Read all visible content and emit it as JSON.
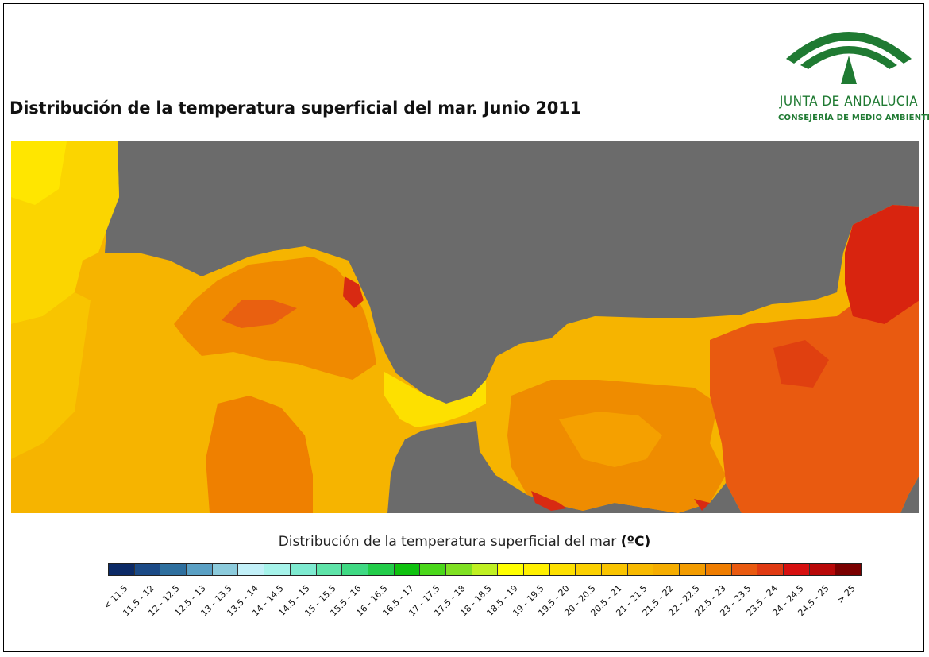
{
  "page": {
    "title": "Distribución de la temperatura superficial del mar. Junio 2011"
  },
  "logo": {
    "line1": "JUNTA DE ANDALUCIA",
    "line2": "CONSEJERÍA DE MEDIO AMBIENTE",
    "color": "#1f7a32"
  },
  "map": {
    "land_color": "#6b6b6b"
  },
  "legend": {
    "title": "Distribución de la temperatura superficial del mar",
    "unit": "(ºC)",
    "classes": [
      {
        "label": "< 11.5",
        "color": "#0c2a66"
      },
      {
        "label": "11.5 - 12",
        "color": "#1b4a86"
      },
      {
        "label": "12 - 12.5",
        "color": "#2e6f9e"
      },
      {
        "label": "12.5 - 13",
        "color": "#5aa0c4"
      },
      {
        "label": "13 - 13.5",
        "color": "#8ccbdc"
      },
      {
        "label": "13.5 - 14",
        "color": "#c2f0f8"
      },
      {
        "label": "14 - 14.5",
        "color": "#a6f3ea"
      },
      {
        "label": "14.5 - 15",
        "color": "#7eead0"
      },
      {
        "label": "15 - 15.5",
        "color": "#5ee3a8"
      },
      {
        "label": "15.5 - 16",
        "color": "#3fd983"
      },
      {
        "label": "16 - 16.5",
        "color": "#22cc49"
      },
      {
        "label": "16.5 - 17",
        "color": "#0fc10f"
      },
      {
        "label": "17 - 17.5",
        "color": "#4ad71a"
      },
      {
        "label": "17.5 - 18",
        "color": "#7fe022"
      },
      {
        "label": "18 - 18.5",
        "color": "#bff022"
      },
      {
        "label": "18.5 - 19",
        "color": "#ffff00"
      },
      {
        "label": "19 - 19.5",
        "color": "#fff000"
      },
      {
        "label": "19.5 - 20",
        "color": "#fde000"
      },
      {
        "label": "20 - 20.5",
        "color": "#fbd000"
      },
      {
        "label": "20.5 - 21",
        "color": "#f9c400"
      },
      {
        "label": "21 - 21.5",
        "color": "#f7b900"
      },
      {
        "label": "21.5 - 22",
        "color": "#f5ad00"
      },
      {
        "label": "22 - 22.5",
        "color": "#f39c00"
      },
      {
        "label": "22.5 - 23",
        "color": "#ef7d00"
      },
      {
        "label": "23 - 23.5",
        "color": "#e95a10"
      },
      {
        "label": "23.5 - 24",
        "color": "#e03a12"
      },
      {
        "label": "24 - 24.5",
        "color": "#d61010"
      },
      {
        "label": "24.5 - 25",
        "color": "#b80808"
      },
      {
        "label": "> 25",
        "color": "#7a0000"
      }
    ]
  }
}
